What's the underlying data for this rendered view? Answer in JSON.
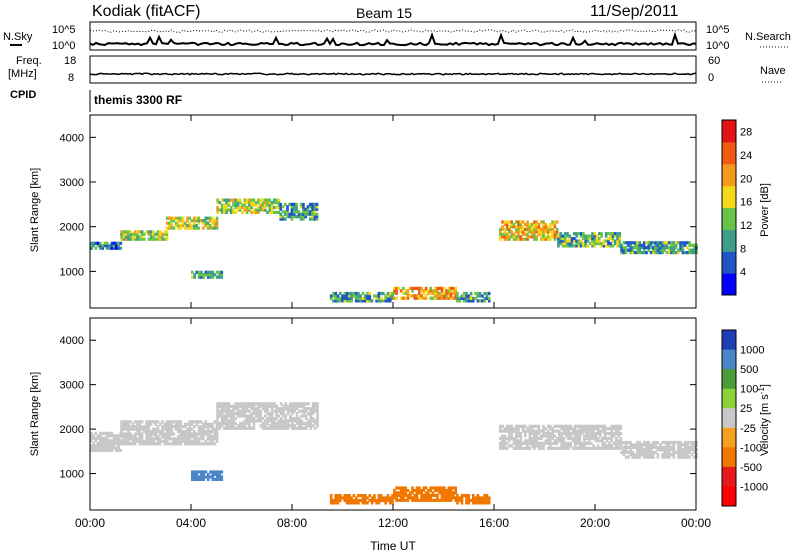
{
  "header": {
    "radar": "Kodiak (fitACF)",
    "beam": "Beam 15",
    "date": "11/Sep/2011"
  },
  "noise_panel": {
    "left_label": "N.Sky",
    "right_label": "N.Search",
    "left_ticks": [
      "10^5",
      "10^0"
    ],
    "right_ticks": [
      "10^5",
      "10^0"
    ]
  },
  "freq_panel": {
    "left_label_1": "Freq.",
    "left_label_2": "[MHz]",
    "right_label": "Nave",
    "left_ticks": [
      "18",
      "8"
    ],
    "right_ticks": [
      "60",
      "0"
    ]
  },
  "cpid_panel": {
    "label": "CPID",
    "value": "themis 3300 RF"
  },
  "colors": {
    "power_scale": [
      "#0000ff",
      "#2055c8",
      "#3e9e8a",
      "#67c44a",
      "#f4d81c",
      "#f59a1c",
      "#f05a14",
      "#e01414"
    ],
    "velocity_scale": [
      "#1e3fb4",
      "#4a86c8",
      "#4c9a38",
      "#8ad43a",
      "#c8c8c8",
      "#f5a020",
      "#f07800",
      "#e61a1a",
      "#ff0000"
    ]
  },
  "chart_data": [
    {
      "type": "heatmap",
      "parameter": "Power",
      "ylabel": "Slant Range [km]",
      "xlabel": "",
      "x_ticks": [
        "00:00",
        "04:00",
        "08:00",
        "12:00",
        "16:00",
        "20:00",
        "00:00"
      ],
      "y_ticks": [
        "1000",
        "2000",
        "3000",
        "4000"
      ],
      "xlim_hours": [
        0,
        24
      ],
      "ylim_km": [
        180,
        4500
      ],
      "colorbar_title": "Power [dB]",
      "colorbar_ticks": [
        "4",
        "8",
        "12",
        "16",
        "20",
        "24",
        "28"
      ],
      "colorbar_range": [
        0,
        30
      ],
      "bands": [
        {
          "t_start": 0.0,
          "t_end": 1.2,
          "r_from": 1500,
          "r_to": 1650,
          "level": 8
        },
        {
          "t_start": 1.2,
          "t_end": 3.0,
          "r_from": 1700,
          "r_to": 1900,
          "level": 14
        },
        {
          "t_start": 3.0,
          "t_end": 5.0,
          "r_from": 1950,
          "r_to": 2200,
          "level": 16
        },
        {
          "t_start": 5.0,
          "t_end": 7.5,
          "r_from": 2300,
          "r_to": 2600,
          "level": 14
        },
        {
          "t_start": 7.5,
          "t_end": 9.0,
          "r_from": 2150,
          "r_to": 2500,
          "level": 10
        },
        {
          "t_start": 4.0,
          "t_end": 5.2,
          "r_from": 850,
          "r_to": 1000,
          "level": 10
        },
        {
          "t_start": 9.5,
          "t_end": 12.0,
          "r_from": 320,
          "r_to": 520,
          "level": 10
        },
        {
          "t_start": 12.0,
          "t_end": 14.5,
          "r_from": 380,
          "r_to": 650,
          "level": 20
        },
        {
          "t_start": 14.5,
          "t_end": 15.8,
          "r_from": 320,
          "r_to": 500,
          "level": 10
        },
        {
          "t_start": 16.2,
          "t_end": 18.5,
          "r_from": 1700,
          "r_to": 2100,
          "level": 18
        },
        {
          "t_start": 18.5,
          "t_end": 21.0,
          "r_from": 1550,
          "r_to": 1850,
          "level": 12
        },
        {
          "t_start": 21.0,
          "t_end": 24.0,
          "r_from": 1400,
          "r_to": 1650,
          "level": 10
        }
      ]
    },
    {
      "type": "heatmap",
      "parameter": "Velocity",
      "ylabel": "Slant Range [km]",
      "xlabel": "Time UT",
      "x_ticks": [
        "00:00",
        "04:00",
        "08:00",
        "12:00",
        "16:00",
        "20:00",
        "00:00"
      ],
      "y_ticks": [
        "1000",
        "2000",
        "3000",
        "4000"
      ],
      "xlim_hours": [
        0,
        24
      ],
      "ylim_km": [
        180,
        4500
      ],
      "colorbar_title": "Velocity [m s",
      "colorbar_title_sup": "-1",
      "colorbar_title_end": "]",
      "colorbar_ticks": [
        "1000",
        "500",
        "100",
        "25",
        "-25",
        "-100",
        "-500",
        "-1000"
      ],
      "bands": [
        {
          "t_start": 0.0,
          "t_end": 1.2,
          "r_from": 1500,
          "r_to": 1900,
          "vel": 0
        },
        {
          "t_start": 1.2,
          "t_end": 5.0,
          "r_from": 1650,
          "r_to": 2200,
          "vel": 0
        },
        {
          "t_start": 5.0,
          "t_end": 9.0,
          "r_from": 2000,
          "r_to": 2600,
          "vel": 0
        },
        {
          "t_start": 4.0,
          "t_end": 5.2,
          "r_from": 850,
          "r_to": 1050,
          "vel": 150
        },
        {
          "t_start": 9.5,
          "t_end": 12.0,
          "r_from": 320,
          "r_to": 520,
          "vel": -150
        },
        {
          "t_start": 12.0,
          "t_end": 14.5,
          "r_from": 380,
          "r_to": 700,
          "vel": -200
        },
        {
          "t_start": 14.5,
          "t_end": 15.8,
          "r_from": 320,
          "r_to": 500,
          "vel": -120
        },
        {
          "t_start": 16.2,
          "t_end": 21.0,
          "r_from": 1550,
          "r_to": 2100,
          "vel": 0
        },
        {
          "t_start": 21.0,
          "t_end": 24.0,
          "r_from": 1350,
          "r_to": 1700,
          "vel": 0
        }
      ]
    }
  ]
}
